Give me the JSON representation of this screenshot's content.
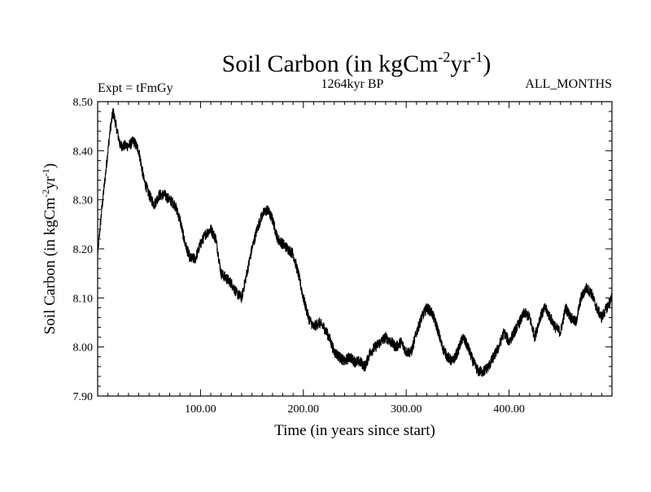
{
  "chart_data": {
    "type": "line",
    "title": "Soil Carbon (in kgCm",
    "title_unit_sup1": "-2",
    "title_unit_mid": "yr",
    "title_unit_sup2": "-1",
    "title_unit_close": ")",
    "subtitle_left": "Expt = tFmGy",
    "subtitle_center": "1264kyr BP",
    "subtitle_right": "ALL_MONTHS",
    "xlabel": "Time (in years since start)",
    "ylabel_main": "Soil Carbon (in kgCm",
    "ylabel_sup1": "-2",
    "ylabel_mid": "yr",
    "ylabel_sup2": "-1",
    "ylabel_close": ")",
    "xlim": [
      0,
      500
    ],
    "ylim": [
      7.9,
      8.5
    ],
    "xticks": [
      100,
      200,
      300,
      400
    ],
    "xtick_labels": [
      "100.00",
      "200.00",
      "300.00",
      "400.00"
    ],
    "yticks": [
      7.9,
      8.0,
      8.1,
      8.2,
      8.3,
      8.4,
      8.5
    ],
    "ytick_labels": [
      "7.90",
      "8.00",
      "8.10",
      "8.20",
      "8.30",
      "8.40",
      "8.50"
    ],
    "line_color": "#000000",
    "series": [
      {
        "name": "Soil Carbon",
        "x": [
          0,
          4,
          8,
          12,
          15,
          18,
          22,
          26,
          30,
          35,
          40,
          45,
          50,
          55,
          60,
          65,
          70,
          75,
          80,
          85,
          90,
          95,
          100,
          105,
          110,
          115,
          120,
          125,
          130,
          135,
          140,
          145,
          150,
          155,
          160,
          165,
          170,
          175,
          180,
          185,
          190,
          195,
          200,
          205,
          210,
          215,
          220,
          225,
          230,
          235,
          240,
          245,
          250,
          255,
          260,
          265,
          270,
          275,
          280,
          285,
          290,
          295,
          300,
          305,
          310,
          315,
          320,
          325,
          330,
          335,
          340,
          345,
          350,
          355,
          360,
          365,
          370,
          375,
          380,
          385,
          390,
          395,
          400,
          405,
          410,
          415,
          420,
          425,
          430,
          435,
          440,
          445,
          450,
          455,
          460,
          465,
          470,
          475,
          480,
          485,
          490,
          495,
          500
        ],
        "values": [
          8.19,
          8.28,
          8.36,
          8.44,
          8.48,
          8.45,
          8.41,
          8.41,
          8.41,
          8.42,
          8.4,
          8.34,
          8.31,
          8.29,
          8.31,
          8.31,
          8.3,
          8.29,
          8.26,
          8.21,
          8.18,
          8.18,
          8.21,
          8.23,
          8.24,
          8.22,
          8.15,
          8.14,
          8.13,
          8.11,
          8.1,
          8.15,
          8.2,
          8.24,
          8.27,
          8.28,
          8.26,
          8.22,
          8.21,
          8.2,
          8.19,
          8.15,
          8.1,
          8.06,
          8.04,
          8.05,
          8.04,
          8.02,
          7.99,
          7.98,
          7.97,
          7.98,
          7.97,
          7.97,
          7.96,
          7.99,
          8.0,
          8.01,
          8.02,
          8.01,
          8.0,
          8.01,
          7.99,
          7.99,
          8.03,
          8.06,
          8.08,
          8.07,
          8.04,
          8.0,
          7.98,
          7.97,
          7.99,
          8.02,
          8.0,
          7.97,
          7.95,
          7.95,
          7.96,
          7.98,
          8.0,
          8.03,
          8.01,
          8.03,
          8.05,
          8.07,
          8.06,
          8.02,
          8.06,
          8.08,
          8.06,
          8.04,
          8.03,
          8.08,
          8.06,
          8.05,
          8.1,
          8.12,
          8.11,
          8.08,
          8.06,
          8.08,
          8.1
        ]
      }
    ]
  }
}
